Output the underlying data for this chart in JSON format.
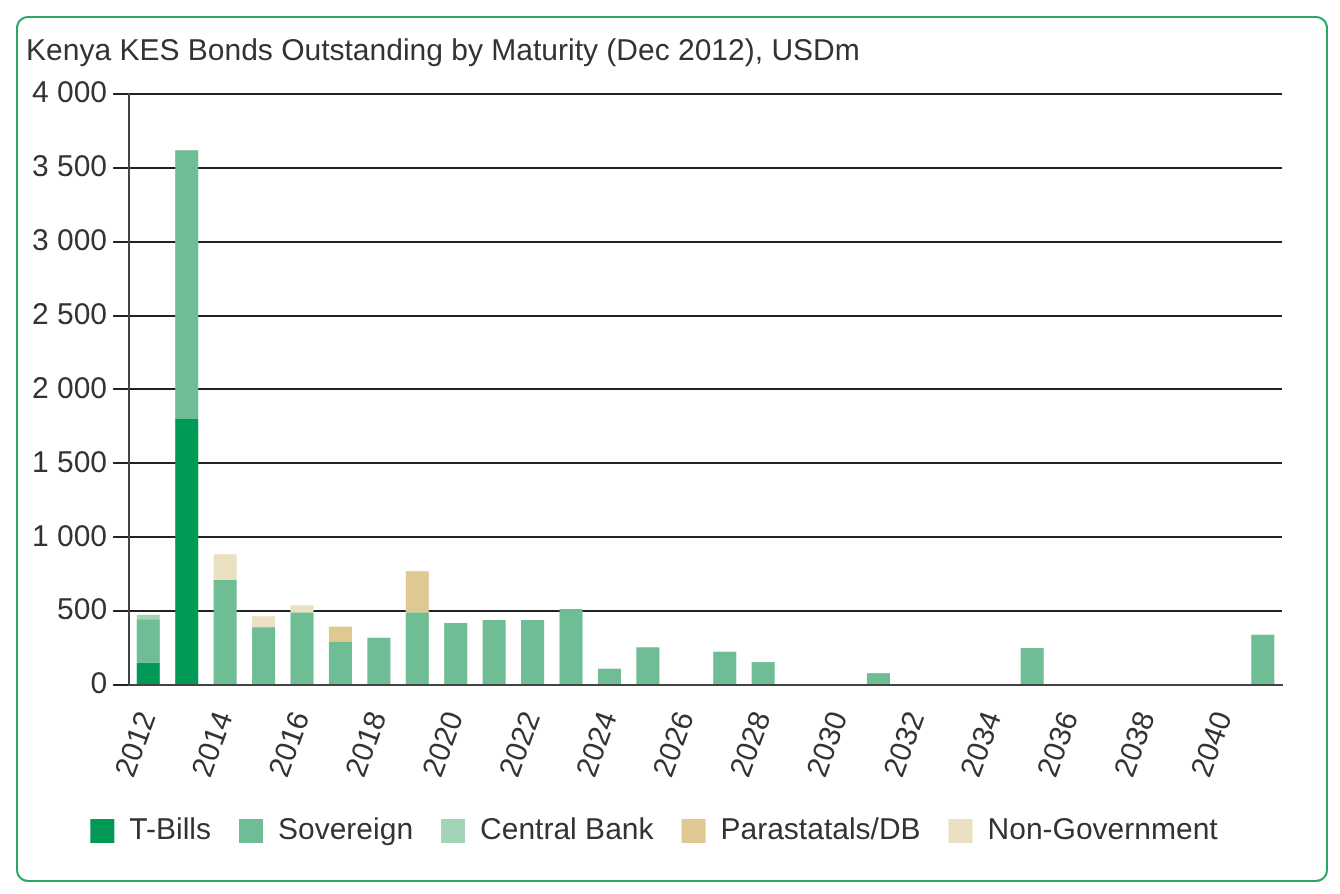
{
  "chart_data": {
    "type": "bar",
    "title": "Kenya KES Bonds Outstanding by Maturity (Dec 2012), USDm",
    "stacked": true,
    "categories": [
      "2012",
      null,
      "2014",
      null,
      "2016",
      null,
      "2018",
      null,
      "2020",
      null,
      "2022",
      null,
      "2024",
      null,
      "2026",
      null,
      "2028",
      null,
      "2030",
      null,
      "2032",
      null,
      "2034",
      null,
      "2036",
      null,
      "2038",
      null,
      "2040",
      null
    ],
    "series": [
      {
        "name": "T-Bills",
        "color": "#009a57",
        "values": [
          150,
          1800,
          0,
          0,
          0,
          0,
          0,
          0,
          0,
          0,
          0,
          0,
          0,
          0,
          0,
          0,
          0,
          0,
          0,
          0,
          0,
          0,
          0,
          0,
          0,
          0,
          0,
          0,
          0,
          0
        ]
      },
      {
        "name": "Sovereign",
        "color": "#6fbd94",
        "values": [
          295,
          1820,
          710,
          390,
          490,
          295,
          320,
          490,
          420,
          440,
          440,
          515,
          110,
          255,
          0,
          225,
          155,
          0,
          0,
          80,
          0,
          0,
          0,
          250,
          0,
          0,
          0,
          0,
          0,
          340
        ]
      },
      {
        "name": "Central Bank",
        "color": "#a3d4b6",
        "values": [
          30,
          0,
          0,
          0,
          0,
          0,
          0,
          0,
          0,
          0,
          0,
          0,
          0,
          0,
          0,
          0,
          0,
          0,
          0,
          0,
          0,
          0,
          0,
          0,
          0,
          0,
          0,
          0,
          0,
          0
        ]
      },
      {
        "name": "Parastatals/DB",
        "color": "#dfc891",
        "values": [
          0,
          0,
          0,
          0,
          0,
          100,
          0,
          280,
          0,
          0,
          0,
          0,
          0,
          0,
          0,
          0,
          0,
          0,
          0,
          0,
          0,
          0,
          0,
          0,
          0,
          0,
          0,
          0,
          0,
          0
        ]
      },
      {
        "name": "Non-Government",
        "color": "#ece0c2",
        "values": [
          0,
          0,
          175,
          75,
          50,
          0,
          0,
          0,
          0,
          0,
          0,
          0,
          0,
          0,
          0,
          0,
          0,
          0,
          0,
          0,
          0,
          0,
          0,
          0,
          0,
          0,
          0,
          0,
          0,
          0
        ]
      }
    ],
    "ylim": [
      0,
      4000
    ],
    "yticks": [
      0,
      500,
      {
        "value": 1000,
        "label": "1 000"
      },
      {
        "value": 1500,
        "label": "1 500"
      },
      {
        "value": 2000,
        "label": "2 000"
      },
      {
        "value": 2500,
        "label": "2 500"
      },
      {
        "value": 3000,
        "label": "3 000"
      },
      {
        "value": 3500,
        "label": "3 500"
      },
      {
        "value": 4000,
        "label": "4 000"
      }
    ],
    "grid": "y",
    "legend": "bottom"
  }
}
